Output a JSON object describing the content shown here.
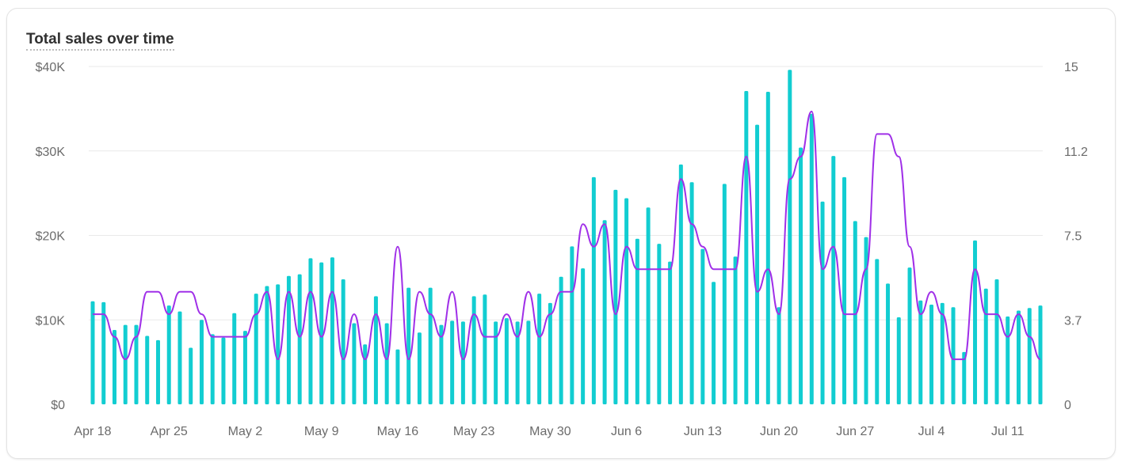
{
  "card": {
    "title": "Total sales over time"
  },
  "colors": {
    "bars": "#12cdd1",
    "line": "#a030e8",
    "grid": "#e9e9e9",
    "tick_text": "#6b6b6b"
  },
  "chart_data": {
    "type": "bar",
    "title": "Total sales over time",
    "xlabel": "",
    "ylabel": "",
    "grid": true,
    "legend": "none",
    "x_tick_labels": [
      "Apr 18",
      "Apr 25",
      "May 2",
      "May 9",
      "May 16",
      "May 23",
      "May 30",
      "Jun 6",
      "Jun 13",
      "Jun 20",
      "Jun 27",
      "Jul 4",
      "Jul 11"
    ],
    "y_left": {
      "ticks": [
        "$0",
        "$10K",
        "$20K",
        "$30K",
        "$40K"
      ],
      "range": [
        0,
        40000
      ]
    },
    "y_right": {
      "ticks": [
        "0",
        "3.7",
        "7.5",
        "11.2",
        "15"
      ],
      "range": [
        0,
        15
      ]
    },
    "series": [
      {
        "type": "bar",
        "axis": "left",
        "values": [
          12200,
          12100,
          8800,
          9400,
          9400,
          8100,
          7600,
          11700,
          11000,
          6700,
          10000,
          8300,
          7900,
          10800,
          8700,
          13100,
          14000,
          14200,
          15200,
          15400,
          17300,
          16800,
          17400,
          14800,
          9600,
          7100,
          12800,
          9600,
          6500,
          13800,
          8500,
          13800,
          9400,
          9900,
          9800,
          12800,
          13000,
          9800,
          10200,
          9800,
          9900,
          13100,
          12000,
          15100,
          18700,
          16100,
          26900,
          21800,
          25400,
          24400,
          19600,
          23300,
          19000,
          16900,
          28400,
          26300,
          18400,
          14500,
          26100,
          17500,
          37100,
          33100,
          37000,
          11500,
          39600,
          30400,
          34400,
          24000,
          29400,
          26900,
          21700,
          19800,
          17200,
          14300,
          10300,
          16200,
          12300,
          11800,
          12000,
          11500,
          6200,
          19400,
          13700,
          14800,
          10400,
          11100,
          11400,
          11700
        ]
      },
      {
        "type": "line",
        "axis": "right",
        "values": [
          4,
          4,
          3,
          2,
          3,
          5,
          5,
          4,
          5,
          5,
          4,
          3,
          3,
          3,
          3,
          4,
          5,
          2,
          5,
          3,
          5,
          3,
          5,
          2,
          4,
          2,
          4,
          2,
          7,
          2,
          5,
          4,
          3,
          5,
          2,
          4,
          3,
          3,
          4,
          3,
          5,
          3,
          4,
          5,
          5,
          8,
          7,
          8,
          4,
          7,
          6,
          6,
          6,
          6,
          10,
          8,
          7,
          6,
          6,
          6,
          11,
          5,
          6,
          4,
          10,
          11,
          13,
          6,
          7,
          4,
          4,
          6,
          12,
          12,
          11,
          7,
          4,
          5,
          4,
          2,
          2,
          6,
          4,
          4,
          3,
          4,
          3,
          2
        ]
      }
    ]
  }
}
